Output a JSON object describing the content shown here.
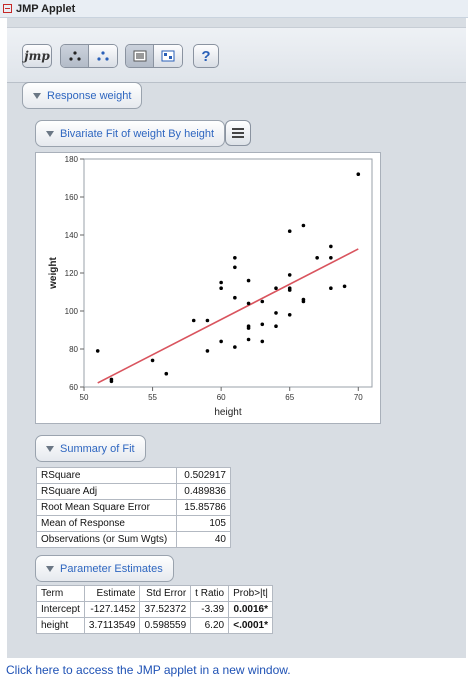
{
  "window": {
    "title": "JMP Applet"
  },
  "toolbar": {
    "logo_label": "jmp",
    "help_label": "?",
    "buttons": [
      "jmp-logo-icon",
      "scatter-dots-icon",
      "scatter-color-dots-icon",
      "row-list-icon",
      "data-grid-icon",
      "help-icon"
    ]
  },
  "outlines": {
    "response": "Response weight",
    "bivariate": "Bivariate Fit of weight By height",
    "summary": "Summary of Fit",
    "parameters": "Parameter Estimates"
  },
  "chart_data": {
    "type": "scatter",
    "xlabel": "height",
    "ylabel": "weight",
    "xlim": [
      50,
      71
    ],
    "ylim": [
      60,
      180
    ],
    "xticks": [
      50,
      55,
      60,
      65,
      70
    ],
    "yticks": [
      60,
      80,
      100,
      120,
      140,
      160,
      180
    ],
    "points": [
      [
        51,
        79
      ],
      [
        52,
        64
      ],
      [
        55,
        74
      ],
      [
        56,
        67
      ],
      [
        58,
        95
      ],
      [
        59,
        95
      ],
      [
        59,
        79
      ],
      [
        60,
        112
      ],
      [
        60,
        115
      ],
      [
        60,
        84
      ],
      [
        61,
        128
      ],
      [
        61,
        123
      ],
      [
        61,
        81
      ],
      [
        61,
        107
      ],
      [
        62,
        116
      ],
      [
        62,
        104
      ],
      [
        62,
        92
      ],
      [
        62,
        91
      ],
      [
        62,
        85
      ],
      [
        63,
        93
      ],
      [
        63,
        84
      ],
      [
        63,
        105
      ],
      [
        64,
        112
      ],
      [
        64,
        99
      ],
      [
        64,
        92
      ],
      [
        65,
        142
      ],
      [
        65,
        119
      ],
      [
        65,
        112
      ],
      [
        65,
        111
      ],
      [
        65,
        98
      ],
      [
        66,
        145
      ],
      [
        66,
        106
      ],
      [
        66,
        105
      ],
      [
        67,
        128
      ],
      [
        68,
        134
      ],
      [
        68,
        128
      ],
      [
        68,
        112
      ],
      [
        69,
        113
      ],
      [
        70,
        172
      ],
      [
        52,
        63
      ]
    ],
    "fit_line": {
      "intercept": -127.1452,
      "slope": 3.7113549,
      "x_range": [
        51,
        70
      ],
      "color": "#d9545e"
    },
    "point_color": "#000000",
    "grid": false
  },
  "summary_of_fit": {
    "rows": [
      {
        "label": "RSquare",
        "value": "0.502917"
      },
      {
        "label": "RSquare Adj",
        "value": "0.489836"
      },
      {
        "label": "Root Mean Square Error",
        "value": "15.85786"
      },
      {
        "label": "Mean of Response",
        "value": "105"
      },
      {
        "label": "Observations (or Sum Wgts)",
        "value": "40"
      }
    ]
  },
  "parameter_estimates": {
    "headers": [
      "Term",
      "Estimate",
      "Std Error",
      "t Ratio",
      "Prob>|t|"
    ],
    "rows": [
      [
        "Intercept",
        "-127.1452",
        "37.52372",
        "-3.39",
        "0.0016*"
      ],
      [
        "height",
        "3.7113549",
        "0.598559",
        "6.20",
        "<.0001*"
      ]
    ]
  },
  "footer_link": "Click here to access the JMP applet in a new window."
}
